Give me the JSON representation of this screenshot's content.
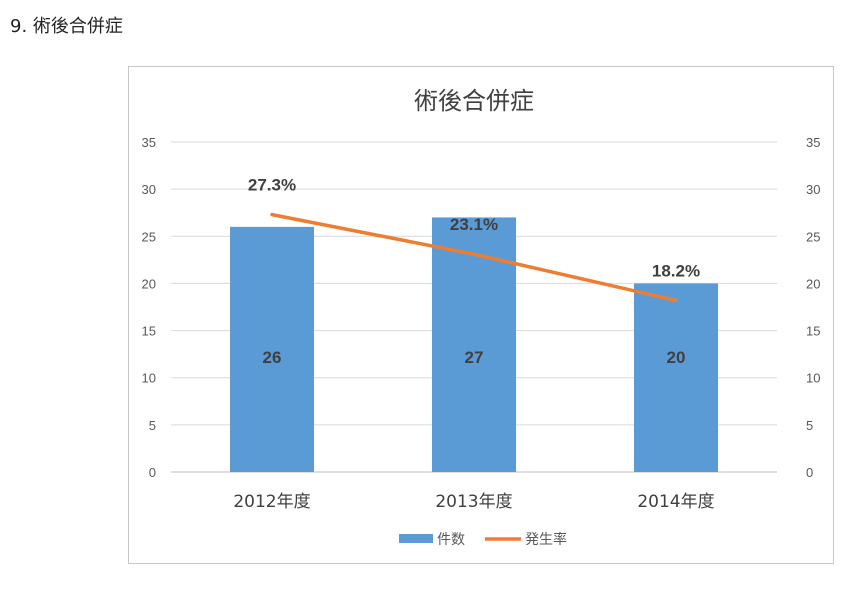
{
  "heading": "9. 術後合併症",
  "chart_data": {
    "type": "bar",
    "title": "術後合併症",
    "categories": [
      "2012年度",
      "2013年度",
      "2014年度"
    ],
    "series": [
      {
        "name": "件数",
        "type": "bar",
        "values": [
          26,
          27,
          20
        ],
        "labels": [
          "26",
          "27",
          "20"
        ],
        "color": "#5b9bd5",
        "axis": "left"
      },
      {
        "name": "発生率",
        "type": "line",
        "values": [
          27.3,
          23.1,
          18.2
        ],
        "labels": [
          "27.3%",
          "23.1%",
          "18.2%"
        ],
        "color": "#ed7d31",
        "axis": "right"
      }
    ],
    "ylim": [
      0,
      35
    ],
    "y_ticks": [
      0,
      5,
      10,
      15,
      20,
      25,
      30,
      35
    ],
    "y2lim": [
      0,
      35
    ],
    "y2_ticks": [
      0,
      5,
      10,
      15,
      20,
      25,
      30,
      35
    ],
    "grid": true,
    "legend": "bottom"
  }
}
